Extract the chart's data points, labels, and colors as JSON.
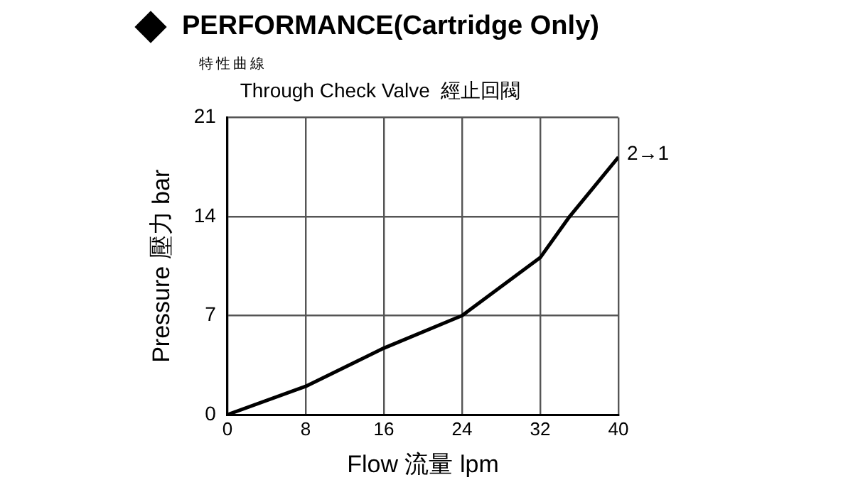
{
  "chart_data": {
    "type": "line",
    "title": "PERFORMANCE(Cartridge Only)",
    "subtitle": "特性曲線",
    "annotations": [
      "Through Check Valve  經止回閥"
    ],
    "xlabel": "Flow 流量 lpm",
    "ylabel": "Pressure 壓力 bar",
    "x": [
      0,
      8,
      16,
      24,
      32,
      35,
      40
    ],
    "series": [
      {
        "name": "2→1",
        "color": "#000000",
        "values": [
          0,
          2,
          4.7,
          7,
          11.1,
          14,
          18.2
        ]
      }
    ],
    "xlim": [
      0,
      40
    ],
    "xticks": [
      0,
      8,
      16,
      24,
      32,
      40
    ],
    "ylim": [
      0,
      21
    ],
    "yticks": [
      0,
      7,
      14,
      21
    ],
    "grid": true,
    "marker": "none",
    "line_style": "solid",
    "legend": false
  }
}
